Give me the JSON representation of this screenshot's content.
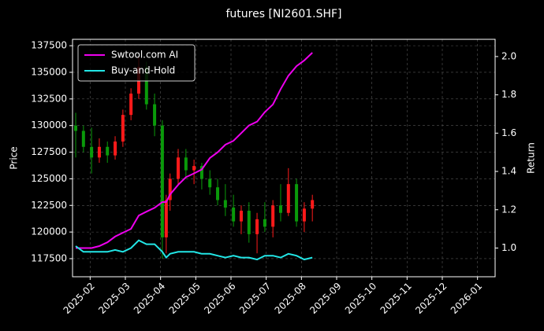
{
  "chart_data": {
    "type": "candlestick",
    "title": "futures [NI2601.SHF]",
    "ylabel": "Price",
    "y2label": "Return",
    "up_color": "#ff1a1a",
    "down_color": "#0a9a0a",
    "grid": true,
    "legend_position": "upper left",
    "xlim": [
      0.5,
      12.5
    ],
    "xticks": [
      {
        "value": 1,
        "label": "2025-02"
      },
      {
        "value": 2,
        "label": "2025-03"
      },
      {
        "value": 3,
        "label": "2025-04"
      },
      {
        "value": 4,
        "label": "2025-05"
      },
      {
        "value": 5,
        "label": "2025-06"
      },
      {
        "value": 6,
        "label": "2025-07"
      },
      {
        "value": 7,
        "label": "2025-08"
      },
      {
        "value": 8,
        "label": "2025-09"
      },
      {
        "value": 9,
        "label": "2025-10"
      },
      {
        "value": 10,
        "label": "2025-11"
      },
      {
        "value": 11,
        "label": "2025-12"
      },
      {
        "value": 12,
        "label": "2026-01"
      }
    ],
    "ylim": [
      115800,
      138100
    ],
    "yticks": [
      117500,
      120000,
      122500,
      125000,
      127500,
      130000,
      132500,
      135000,
      137500
    ],
    "y2lim": [
      0.85,
      2.09
    ],
    "y2ticks": [
      {
        "value": 1,
        "label": "1.0"
      },
      1.2,
      1.4,
      1.6,
      1.8,
      {
        "value": 2,
        "label": "2.0"
      }
    ],
    "x": [
      0.59,
      0.81,
      1.04,
      1.26,
      1.49,
      1.71,
      1.93,
      2.16,
      2.38,
      2.6,
      2.83,
      3.05,
      3.16,
      3.27,
      3.5,
      3.72,
      3.95,
      4.17,
      4.4,
      4.62,
      4.84,
      5.07,
      5.29,
      5.51,
      5.74,
      5.96,
      6.19,
      6.41,
      6.63,
      6.86,
      7.08,
      7.31
    ],
    "open": [
      130000,
      129500,
      128000,
      127000,
      128000,
      127200,
      128500,
      131000,
      133000,
      135500,
      132000,
      130000,
      119500,
      123000,
      125000,
      127000,
      125800,
      126200,
      125000,
      124200,
      123000,
      122300,
      121000,
      122000,
      119800,
      121200,
      120500,
      122500,
      121800,
      124500,
      121000,
      122200
    ],
    "high": [
      131200,
      130000,
      129800,
      128800,
      128500,
      129000,
      131500,
      133500,
      136500,
      136000,
      133000,
      130500,
      123500,
      125500,
      127800,
      127800,
      126800,
      126500,
      125800,
      125000,
      124500,
      123500,
      122500,
      122800,
      121800,
      122800,
      123000,
      124500,
      126000,
      125000,
      122800,
      123500
    ],
    "low": [
      127000,
      127500,
      125500,
      126500,
      126500,
      126800,
      128000,
      130500,
      132500,
      131500,
      129000,
      117500,
      118000,
      122000,
      124500,
      125000,
      124500,
      124000,
      123500,
      122500,
      121500,
      120500,
      119800,
      119000,
      118000,
      120000,
      119500,
      121000,
      121500,
      120500,
      120000,
      121000
    ],
    "close": [
      129500,
      128000,
      127000,
      128000,
      127200,
      128500,
      131000,
      133000,
      135500,
      132000,
      130000,
      119500,
      123000,
      125000,
      127000,
      125800,
      126200,
      125000,
      124200,
      123000,
      122300,
      121000,
      122000,
      119800,
      121200,
      120500,
      122500,
      121800,
      124500,
      121000,
      122200,
      123000
    ],
    "series": [
      {
        "name": "Swtool.com AI",
        "color": "#ee00ee",
        "axis": "y2",
        "values": [
          1.0,
          1.0,
          1.0,
          1.01,
          1.03,
          1.06,
          1.08,
          1.1,
          1.17,
          1.19,
          1.21,
          1.24,
          1.24,
          1.28,
          1.33,
          1.37,
          1.39,
          1.41,
          1.47,
          1.5,
          1.54,
          1.56,
          1.6,
          1.64,
          1.66,
          1.71,
          1.75,
          1.83,
          1.9,
          1.95,
          1.98,
          2.02
        ]
      },
      {
        "name": "Buy-and-Hold",
        "color": "#22e6e6",
        "axis": "y2",
        "values": [
          1.01,
          0.98,
          0.98,
          0.98,
          0.98,
          0.99,
          0.98,
          1.0,
          1.04,
          1.02,
          1.02,
          0.98,
          0.95,
          0.97,
          0.98,
          0.98,
          0.98,
          0.97,
          0.97,
          0.96,
          0.95,
          0.96,
          0.95,
          0.95,
          0.94,
          0.96,
          0.96,
          0.95,
          0.97,
          0.96,
          0.94,
          0.95
        ]
      }
    ]
  }
}
